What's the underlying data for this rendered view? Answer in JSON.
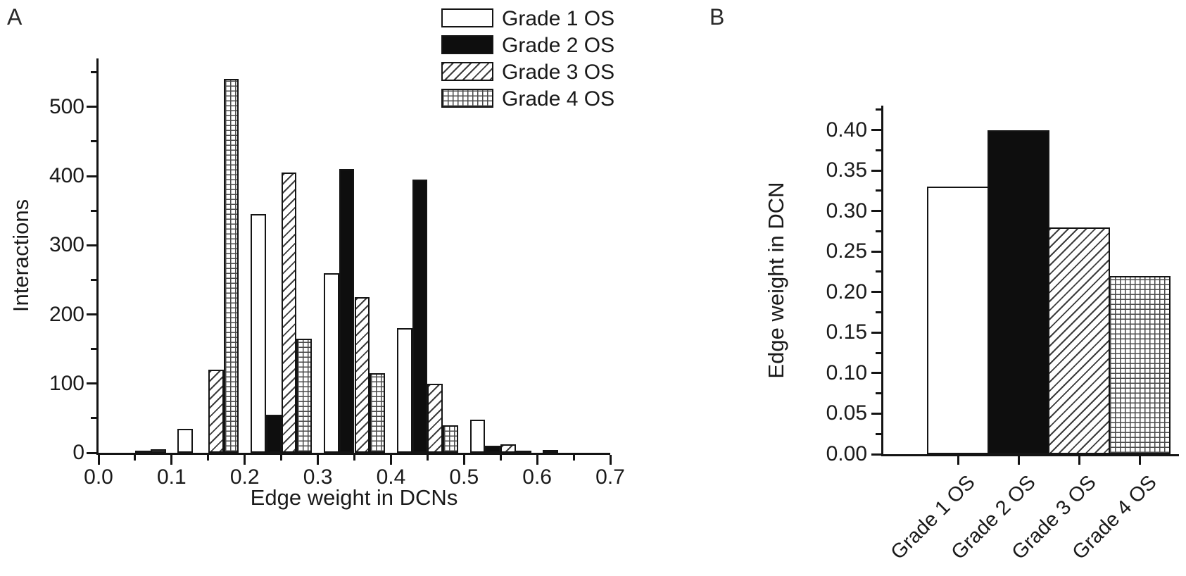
{
  "figure": {
    "panel_a_letter": "A",
    "panel_b_letter": "B"
  },
  "colors": {
    "ink": "#141414",
    "background": "#ffffff"
  },
  "chart_data": [
    {
      "type": "bar",
      "panel": "A",
      "subtype": "grouped-histogram",
      "xlabel": "Edge weight in DCNs",
      "ylabel": "Interactions",
      "xlim": [
        0.0,
        0.7
      ],
      "ylim": [
        0,
        570
      ],
      "x_major_ticks": [
        0.0,
        0.1,
        0.2,
        0.3,
        0.4,
        0.5,
        0.6,
        0.7
      ],
      "x_minor_step": 0.05,
      "y_major_ticks": [
        0,
        100,
        200,
        300,
        400,
        500
      ],
      "y_minor_step": 50,
      "grid": false,
      "legend_position": "top-center",
      "bin_centers": [
        0.05,
        0.15,
        0.25,
        0.35,
        0.45,
        0.55,
        0.65
      ],
      "bar_width_x": 0.021,
      "series": [
        {
          "name": "Grade 1 OS",
          "pattern": "white",
          "values": [
            0,
            35,
            345,
            260,
            180,
            48,
            4
          ]
        },
        {
          "name": "Grade 2 OS",
          "pattern": "black",
          "values": [
            0,
            0,
            55,
            410,
            395,
            10,
            0
          ]
        },
        {
          "name": "Grade 3 OS",
          "pattern": "diagonal",
          "values": [
            2,
            120,
            405,
            225,
            100,
            12,
            0
          ]
        },
        {
          "name": "Grade 4 OS",
          "pattern": "grid",
          "values": [
            5,
            540,
            165,
            115,
            40,
            2,
            0
          ]
        }
      ]
    },
    {
      "type": "bar",
      "panel": "B",
      "xlabel": "",
      "ylabel": "Edge weight in DCN",
      "categories": [
        "Grade 1 OS",
        "Grade 2 OS",
        "Grade 3 OS",
        "Grade 4 OS"
      ],
      "values": [
        0.33,
        0.4,
        0.28,
        0.22
      ],
      "patterns": [
        "white",
        "black",
        "diagonal",
        "grid"
      ],
      "ylim": [
        0,
        0.43
      ],
      "y_major_ticks": [
        0.0,
        0.05,
        0.1,
        0.15,
        0.2,
        0.25,
        0.3,
        0.35,
        0.4
      ],
      "y_minor_step": 0.025,
      "grid": false,
      "legend_position": "none"
    }
  ]
}
